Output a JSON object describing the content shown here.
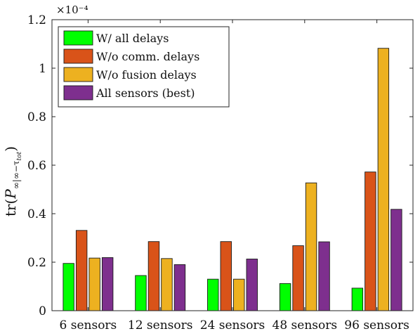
{
  "chart_data": {
    "type": "bar",
    "categories": [
      "6 sensors",
      "12 sensors",
      "24 sensors",
      "48 sensors",
      "96 sensors"
    ],
    "series": [
      {
        "name": "W/ all delays",
        "color": "#00ff00",
        "values": [
          0.195,
          0.145,
          0.13,
          0.112,
          0.093
        ]
      },
      {
        "name": "W/o comm. delays",
        "color": "#d95319",
        "values": [
          0.331,
          0.285,
          0.285,
          0.268,
          0.572
        ]
      },
      {
        "name": "W/o fusion delays",
        "color": "#edb120",
        "values": [
          0.217,
          0.215,
          0.13,
          0.527,
          1.082
        ]
      },
      {
        "name": "All sensors (best)",
        "color": "#7e2f8e",
        "values": [
          0.219,
          0.19,
          0.213,
          0.284,
          0.418
        ]
      }
    ],
    "scale_text": "×10⁻⁴",
    "ylabel": {
      "base": "tr",
      "open_paren": "(",
      "symbol": "P",
      "subscript": "∞|∞−τ",
      "subsubscript": "tot",
      "close_paren": ")"
    },
    "ylim": [
      0,
      1.2
    ],
    "yticks": [
      "0",
      "0.2",
      "0.4",
      "0.6",
      "0.8",
      "1",
      "1.2"
    ],
    "legend_position": "top-left",
    "grid": false
  }
}
